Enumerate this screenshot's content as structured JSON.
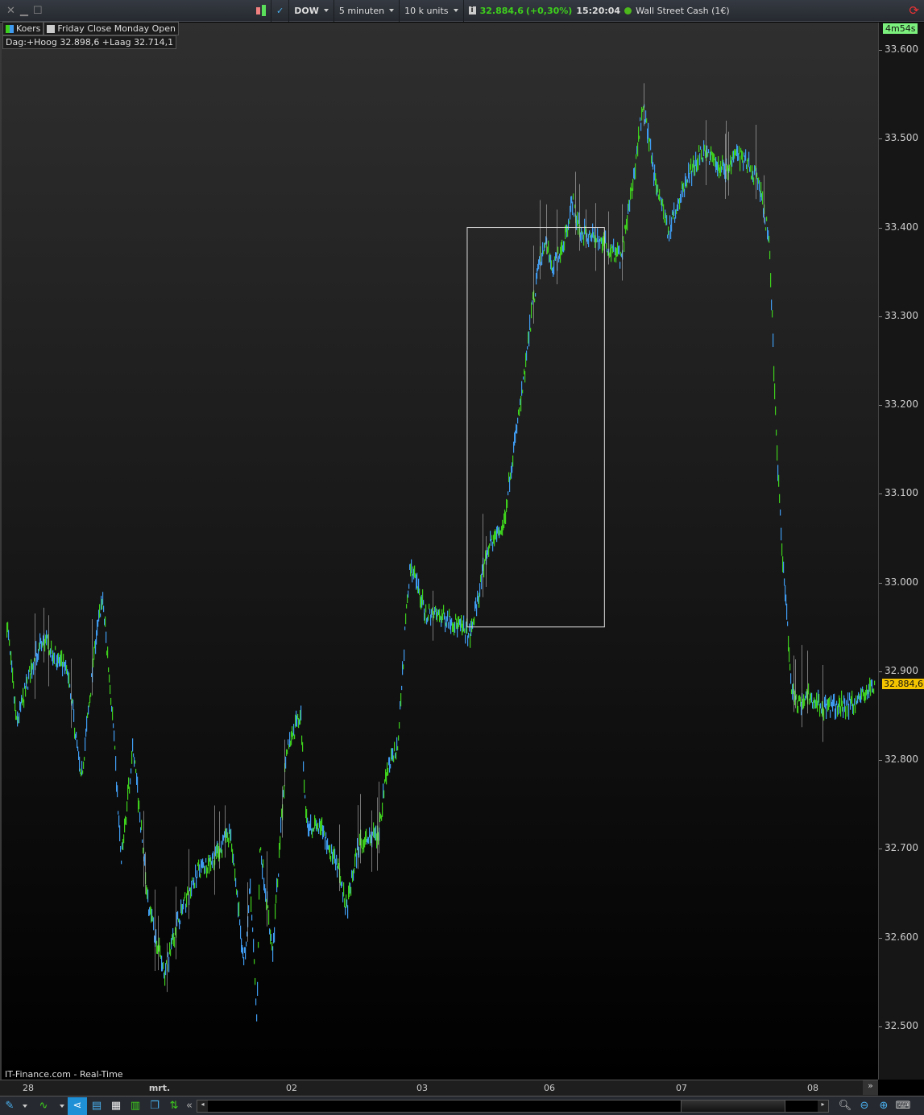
{
  "topbar": {
    "instrument": "DOW",
    "interval": "5 minuten",
    "units": "10 k units",
    "price": "32.884,6",
    "change": "(+0,30%)",
    "time": "15:20:04",
    "market": "Wall Street Cash (1€)"
  },
  "legend": {
    "series": "Koers",
    "overlay": "Friday Close Monday Open",
    "day_range": "Dag:+Hoog 32.898,6 +Laag 32.714,1"
  },
  "countdown": "4m54s",
  "source": "IT-Finance.com - Real-Time",
  "colors": {
    "up": "#3ecf1c",
    "down": "#3f9bf0",
    "price_tag": "#f5c400",
    "countdown_bg": "#7cf07c",
    "accent": "#1f8fd6"
  },
  "chart_data": {
    "type": "bar",
    "current_price": 32884.6,
    "ylim": [
      32450,
      33640
    ],
    "yticks": [
      "33.600",
      "33.500",
      "33.400",
      "33.300",
      "33.200",
      "33.100",
      "33.000",
      "32.900",
      "32.800",
      "32.700",
      "32.600",
      "32.500"
    ],
    "ytick_values": [
      33600,
      33500,
      33400,
      33300,
      33200,
      33100,
      33000,
      32900,
      32800,
      32700,
      32600,
      32500
    ],
    "price_tag": "32.884,6",
    "xticks": [
      "28",
      "mrt.",
      "02",
      "03",
      "06",
      "07",
      "08"
    ],
    "days": [
      "02-27",
      "02-28",
      "03-01",
      "03-02",
      "03-03",
      "03-06",
      "03-07",
      "03-08"
    ],
    "box": {
      "from": "03-03 08:30",
      "to": "03-06 10:00",
      "low": 32950,
      "high": 33400
    },
    "points": [
      [
        "02-27 19:35",
        32965
      ],
      [
        "02-27 21:30",
        32840
      ],
      [
        "02-28 00:45",
        32910
      ],
      [
        "02-28 02:55",
        32935
      ],
      [
        "02-28 07:20",
        32895
      ],
      [
        "02-28 09:35",
        32775
      ],
      [
        "02-28 12:10",
        32930
      ],
      [
        "02-28 13:30",
        32985
      ],
      [
        "02-28 15:25",
        32840
      ],
      [
        "02-28 16:55",
        32685
      ],
      [
        "02-28 19:05",
        32815
      ],
      [
        "02-28 22:00",
        32630
      ],
      [
        "03-01 01:00",
        32560
      ],
      [
        "03-01 03:15",
        32620
      ],
      [
        "03-01 06:55",
        32675
      ],
      [
        "03-01 10:35",
        32695
      ],
      [
        "03-01 12:50",
        32720
      ],
      [
        "03-01 15:15",
        32570
      ],
      [
        "03-01 16:25",
        32660
      ],
      [
        "03-01 17:35",
        32505
      ],
      [
        "03-01 18:10",
        32705
      ],
      [
        "03-01 20:30",
        32585
      ],
      [
        "03-01 23:00",
        32815
      ],
      [
        "03-02 01:35",
        32850
      ],
      [
        "03-02 02:40",
        32730
      ],
      [
        "03-02 05:35",
        32720
      ],
      [
        "03-02 08:30",
        32675
      ],
      [
        "03-02 10:00",
        32630
      ],
      [
        "03-02 12:10",
        32705
      ],
      [
        "03-02 15:50",
        32715
      ],
      [
        "03-02 17:20",
        32785
      ],
      [
        "03-02 19:30",
        32820
      ],
      [
        "03-02 21:00",
        32965
      ],
      [
        "03-02 21:45",
        33020
      ],
      [
        "03-03 00:35",
        32965
      ],
      [
        "03-03 05:00",
        32960
      ],
      [
        "03-03 09:00",
        32940
      ],
      [
        "03-03 12:20",
        33040
      ],
      [
        "03-03 15:20",
        33065
      ],
      [
        "03-03 16:25",
        33120
      ],
      [
        "03-03 19:10",
        33230
      ],
      [
        "03-03 20:40",
        33310
      ],
      [
        "03-03 21:55",
        33355
      ],
      [
        "03-03 23:00",
        33385
      ],
      [
        "03-06 00:25",
        33355
      ],
      [
        "03-06 02:35",
        33385
      ],
      [
        "03-06 04:05",
        33430
      ],
      [
        "03-06 05:35",
        33395
      ],
      [
        "03-06 09:15",
        33385
      ],
      [
        "03-06 12:55",
        33365
      ],
      [
        "03-06 15:05",
        33450
      ],
      [
        "03-06 16:55",
        33540
      ],
      [
        "03-06 19:05",
        33455
      ],
      [
        "03-06 21:30",
        33395
      ],
      [
        "03-07 00:35",
        33450
      ],
      [
        "03-07 03:30",
        33485
      ],
      [
        "03-07 07:55",
        33465
      ],
      [
        "03-07 10:05",
        33485
      ],
      [
        "03-07 13:50",
        33455
      ],
      [
        "03-07 16:00",
        33385
      ],
      [
        "03-07 17:05",
        33185
      ],
      [
        "03-07 18:15",
        33040
      ],
      [
        "03-07 20:00",
        32885
      ],
      [
        "03-07 21:10",
        32860
      ],
      [
        "03-07 22:40",
        32875
      ],
      [
        "03-08 01:40",
        32860
      ],
      [
        "03-08 04:35",
        32860
      ],
      [
        "03-08 07:35",
        32865
      ],
      [
        "03-08 11:15",
        32885
      ]
    ]
  }
}
